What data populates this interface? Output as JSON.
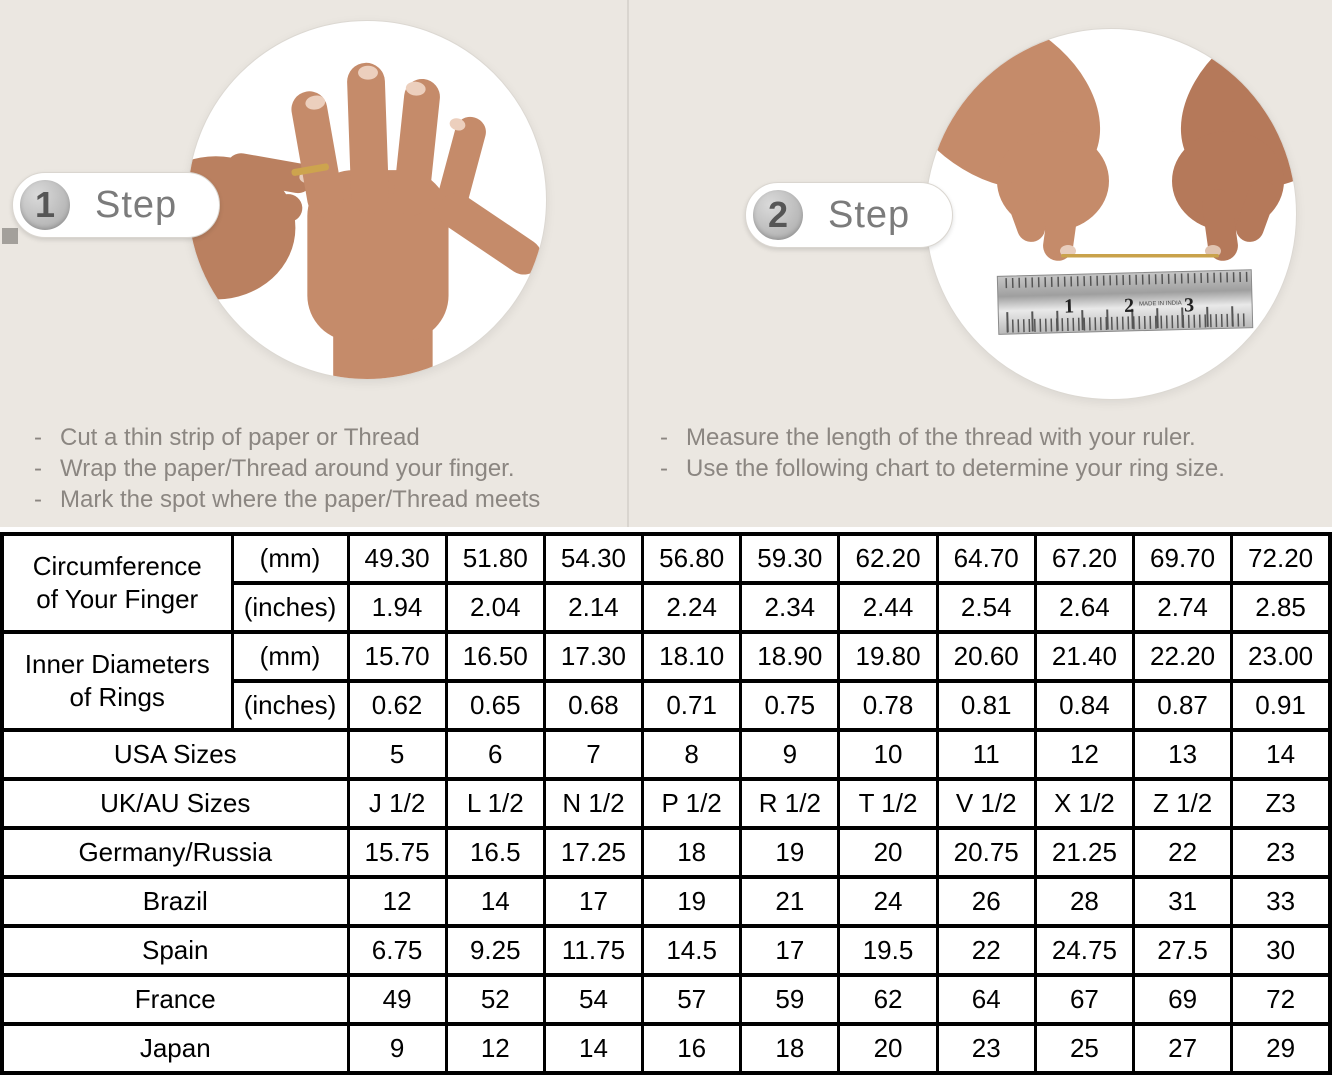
{
  "steps": [
    {
      "badge_number": "1",
      "badge_label": "Step",
      "bullets": [
        "Cut a thin strip of paper or Thread",
        "Wrap the paper/Thread around your finger.",
        "Mark the spot where the paper/Thread meets"
      ]
    },
    {
      "badge_number": "2",
      "badge_label": "Step",
      "bullets": [
        "Measure the length of the thread with your ruler.",
        "Use the following chart to determine your ring size."
      ]
    }
  ],
  "ruler": {
    "numbers": [
      "1",
      "2",
      "3"
    ],
    "brand_text": "MADE IN INDIA"
  },
  "colors": {
    "top_background": "#ebe7e1",
    "table_shade": "#d9d9d9",
    "table_border": "#000000",
    "gold_thread": "#c9a24b",
    "instruction_text": "#8b8681"
  },
  "chart_data": {
    "type": "table",
    "column_count": 10,
    "row_groups": [
      {
        "label": "Circumference of Your Finger",
        "label_lines": [
          "Circumference",
          "of Your Finger"
        ],
        "sub_rows": [
          {
            "unit": "(mm)",
            "shaded": true,
            "values": [
              "49.30",
              "51.80",
              "54.30",
              "56.80",
              "59.30",
              "62.20",
              "64.70",
              "67.20",
              "69.70",
              "72.20"
            ]
          },
          {
            "unit": "(inches)",
            "shaded": false,
            "values": [
              "1.94",
              "2.04",
              "2.14",
              "2.24",
              "2.34",
              "2.44",
              "2.54",
              "2.64",
              "2.74",
              "2.85"
            ]
          }
        ]
      },
      {
        "label": "Inner Diameters of Rings",
        "label_lines": [
          "Inner Diameters",
          "of Rings"
        ],
        "sub_rows": [
          {
            "unit": "(mm)",
            "shaded": false,
            "values": [
              "15.70",
              "16.50",
              "17.30",
              "18.10",
              "18.90",
              "19.80",
              "20.60",
              "21.40",
              "22.20",
              "23.00"
            ]
          },
          {
            "unit": "(inches)",
            "shaded": false,
            "values": [
              "0.62",
              "0.65",
              "0.68",
              "0.71",
              "0.75",
              "0.78",
              "0.81",
              "0.84",
              "0.87",
              "0.91"
            ]
          }
        ]
      }
    ],
    "size_rows": [
      {
        "label": "USA Sizes",
        "shaded": true,
        "values": [
          "5",
          "6",
          "7",
          "8",
          "9",
          "10",
          "11",
          "12",
          "13",
          "14"
        ]
      },
      {
        "label": "UK/AU Sizes",
        "shaded": false,
        "values": [
          "J 1/2",
          "L 1/2",
          "N 1/2",
          "P 1/2",
          "R 1/2",
          "T 1/2",
          "V 1/2",
          "X 1/2",
          "Z 1/2",
          "Z3"
        ]
      },
      {
        "label": "Germany/Russia",
        "shaded": false,
        "values": [
          "15.75",
          "16.5",
          "17.25",
          "18",
          "19",
          "20",
          "20.75",
          "21.25",
          "22",
          "23"
        ]
      },
      {
        "label": "Brazil",
        "shaded": false,
        "values": [
          "12",
          "14",
          "17",
          "19",
          "21",
          "24",
          "26",
          "28",
          "31",
          "33"
        ]
      },
      {
        "label": "Spain",
        "shaded": false,
        "values": [
          "6.75",
          "9.25",
          "11.75",
          "14.5",
          "17",
          "19.5",
          "22",
          "24.75",
          "27.5",
          "30"
        ]
      },
      {
        "label": "France",
        "shaded": false,
        "values": [
          "49",
          "52",
          "54",
          "57",
          "59",
          "62",
          "64",
          "67",
          "69",
          "72"
        ]
      },
      {
        "label": "Japan",
        "shaded": false,
        "values": [
          "9",
          "12",
          "14",
          "16",
          "18",
          "20",
          "23",
          "25",
          "27",
          "29"
        ]
      }
    ]
  }
}
